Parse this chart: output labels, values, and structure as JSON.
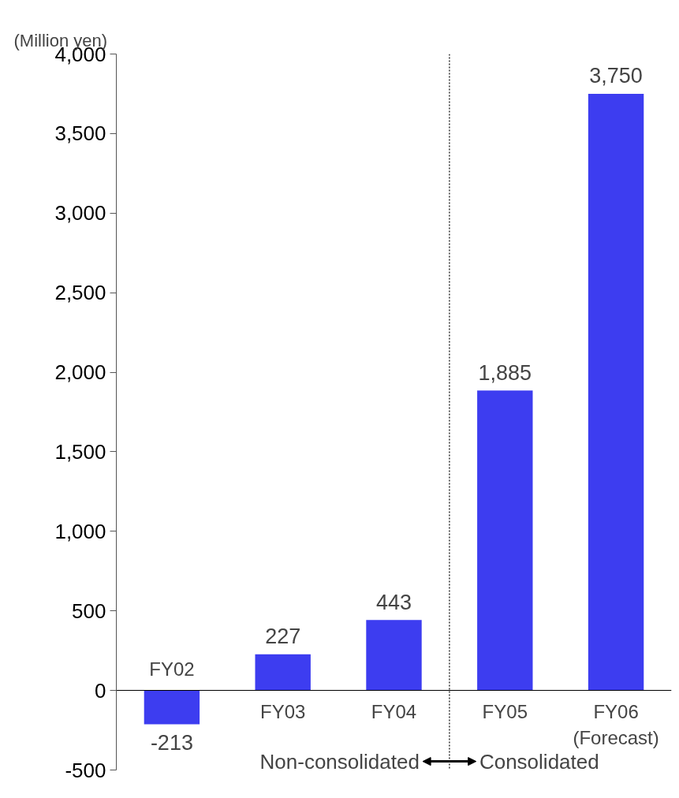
{
  "chart_data": {
    "type": "bar",
    "ylabel": "(Million yen)",
    "categories": [
      "FY02",
      "FY03",
      "FY04",
      "FY05",
      "FY06\n(Forecast)"
    ],
    "values": [
      -213,
      227,
      443,
      1885,
      3750
    ],
    "color": "#3d3df0",
    "value_labels": [
      "-213",
      "227",
      "443",
      "1,885",
      "3,750"
    ],
    "ylim": [
      -500,
      4000
    ],
    "yticks": [
      {
        "value": -500,
        "label": "-500"
      },
      {
        "value": 0,
        "label": "0"
      },
      {
        "value": 500,
        "label": "500"
      },
      {
        "value": 1000,
        "label": "1,000"
      },
      {
        "value": 1500,
        "label": "1,500"
      },
      {
        "value": 2000,
        "label": "2,000"
      },
      {
        "value": 2500,
        "label": "2,500"
      },
      {
        "value": 3000,
        "label": "3,000"
      },
      {
        "value": 3500,
        "label": "3,500"
      },
      {
        "value": 4000,
        "label": "4,000"
      }
    ],
    "grid": false,
    "annotations": [
      "Non-consolidated",
      "Consolidated"
    ]
  }
}
